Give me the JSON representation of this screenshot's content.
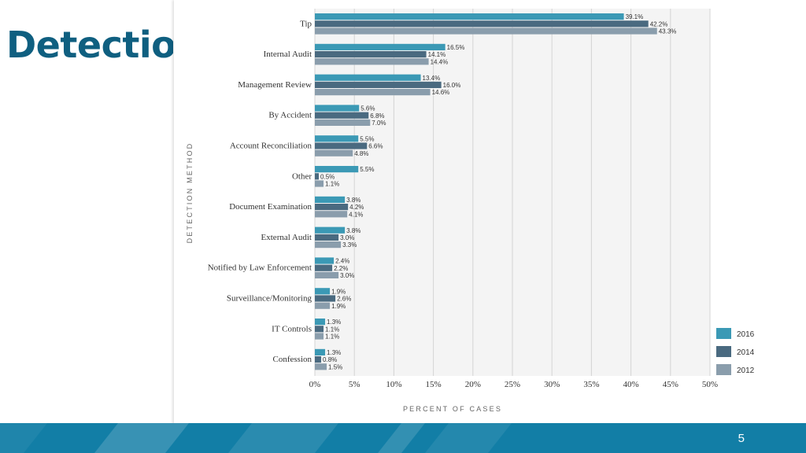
{
  "slide": {
    "title": "Detection",
    "page_number": "5"
  },
  "colors": {
    "title": "#0f5f80",
    "footer": "#127ea6",
    "grid": "#d4d4d4",
    "plot_background": "#f4f4f4"
  },
  "chart_data": {
    "type": "bar",
    "orientation": "horizontal",
    "ylabel": "DETECTION METHOD",
    "xlabel": "PERCENT OF CASES",
    "xlim": [
      0,
      50
    ],
    "xticks": [
      "0%",
      "5%",
      "10%",
      "15%",
      "20%",
      "25%",
      "30%",
      "35%",
      "40%",
      "45%",
      "50%"
    ],
    "grid": true,
    "legend_position": "bottom-right",
    "categories": [
      "Tip",
      "Internal Audit",
      "Management Review",
      "By Accident",
      "Account Reconciliation",
      "Other",
      "Document Examination",
      "External Audit",
      "Notified by Law Enforcement",
      "Surveillance/Monitoring",
      "IT Controls",
      "Confession"
    ],
    "series": [
      {
        "name": "2016",
        "color": "#3b99b5",
        "values": [
          39.1,
          16.5,
          13.4,
          5.6,
          5.5,
          5.5,
          3.8,
          3.8,
          2.4,
          1.9,
          1.3,
          1.3
        ],
        "labels": [
          "39.1%",
          "16.5%",
          "13.4%",
          "5.6%",
          "5.5%",
          "5.5%",
          "3.8%",
          "3.8%",
          "2.4%",
          "1.9%",
          "1.3%",
          "1.3%"
        ]
      },
      {
        "name": "2014",
        "color": "#4a6a80",
        "values": [
          42.2,
          14.1,
          16.0,
          6.8,
          6.6,
          0.5,
          4.2,
          3.0,
          2.2,
          2.6,
          1.1,
          0.8
        ],
        "labels": [
          "42.2%",
          "14.1%",
          "16.0%",
          "6.8%",
          "6.6%",
          "0.5%",
          "4.2%",
          "3.0%",
          "2.2%",
          "2.6%",
          "1.1%",
          "0.8%"
        ]
      },
      {
        "name": "2012",
        "color": "#8a9dac",
        "values": [
          43.3,
          14.4,
          14.6,
          7.0,
          4.8,
          1.1,
          4.1,
          3.3,
          3.0,
          1.9,
          1.1,
          1.5
        ],
        "labels": [
          "43.3%",
          "14.4%",
          "14.6%",
          "7.0%",
          "4.8%",
          "1.1%",
          "4.1%",
          "3.3%",
          "3.0%",
          "1.9%",
          "1.1%",
          "1.5%"
        ]
      }
    ]
  }
}
